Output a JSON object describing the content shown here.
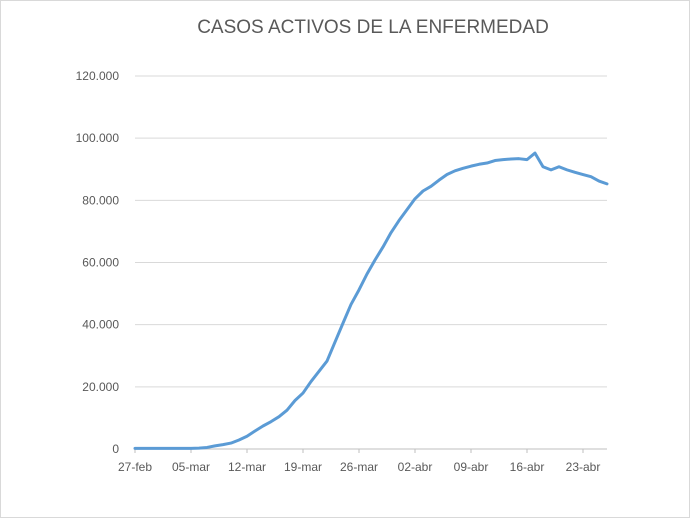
{
  "chart_data": {
    "type": "line",
    "title": "CASOS ACTIVOS DE LA ENFERMEDAD",
    "xlabel": "",
    "ylabel": "",
    "ylim": [
      0,
      120000
    ],
    "y_ticks": [
      0,
      20000,
      40000,
      60000,
      80000,
      100000,
      120000
    ],
    "y_tick_labels": [
      "0",
      "20.000",
      "40.000",
      "60.000",
      "80.000",
      "100.000",
      "120.000"
    ],
    "x_tick_labels": [
      "27-feb",
      "05-mar",
      "12-mar",
      "19-mar",
      "26-mar",
      "02-abr",
      "09-abr",
      "16-abr",
      "23-abr"
    ],
    "grid": true,
    "legend": "none",
    "series": [
      {
        "color": "#5b9bd5",
        "x": [
          "27-feb",
          "28-feb",
          "29-feb",
          "01-mar",
          "02-mar",
          "03-mar",
          "04-mar",
          "05-mar",
          "06-mar",
          "07-mar",
          "08-mar",
          "09-mar",
          "10-mar",
          "11-mar",
          "12-mar",
          "13-mar",
          "14-mar",
          "15-mar",
          "16-mar",
          "17-mar",
          "18-mar",
          "19-mar",
          "20-mar",
          "21-mar",
          "22-mar",
          "23-mar",
          "24-mar",
          "25-mar",
          "26-mar",
          "27-mar",
          "28-mar",
          "29-mar",
          "30-mar",
          "31-mar",
          "01-abr",
          "02-abr",
          "03-abr",
          "04-abr",
          "05-abr",
          "06-abr",
          "07-abr",
          "08-abr",
          "09-abr",
          "10-abr",
          "11-abr",
          "12-abr",
          "13-abr",
          "14-abr",
          "15-abr",
          "16-abr",
          "17-abr",
          "18-abr",
          "19-abr",
          "20-abr",
          "21-abr",
          "22-abr",
          "23-abr",
          "24-abr",
          "25-abr",
          "26-abr"
        ],
        "values": [
          200,
          200,
          200,
          200,
          200,
          200,
          200,
          200,
          300,
          500,
          1000,
          1400,
          1900,
          2900,
          4100,
          5800,
          7400,
          8800,
          10400,
          12500,
          15600,
          18000,
          21700,
          25000,
          28300,
          34400,
          40500,
          46500,
          51200,
          56300,
          60800,
          65000,
          69600,
          73500,
          77000,
          80500,
          83000,
          84500,
          86500,
          88300,
          89500,
          90300,
          91000,
          91600,
          92000,
          92800,
          93100,
          93300,
          93400,
          93100,
          95200,
          90800,
          89800,
          90800,
          89800,
          89000,
          88300,
          87600,
          86200,
          85300
        ]
      }
    ]
  }
}
